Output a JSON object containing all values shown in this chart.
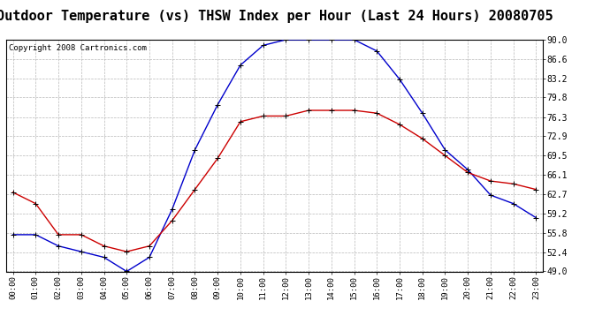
{
  "title": "Outdoor Temperature (vs) THSW Index per Hour (Last 24 Hours) 20080705",
  "copyright": "Copyright 2008 Cartronics.com",
  "hours": [
    "00:00",
    "01:00",
    "02:00",
    "03:00",
    "04:00",
    "05:00",
    "06:00",
    "07:00",
    "08:00",
    "09:00",
    "10:00",
    "11:00",
    "12:00",
    "13:00",
    "14:00",
    "15:00",
    "16:00",
    "17:00",
    "18:00",
    "19:00",
    "20:00",
    "21:00",
    "22:00",
    "23:00"
  ],
  "temp": [
    63.0,
    61.0,
    55.5,
    55.5,
    53.5,
    52.5,
    53.5,
    58.0,
    63.5,
    69.0,
    75.5,
    76.5,
    76.5,
    77.5,
    77.5,
    77.5,
    77.0,
    75.0,
    72.5,
    69.5,
    66.5,
    65.0,
    64.5,
    63.5
  ],
  "thsw": [
    55.5,
    55.5,
    53.5,
    52.5,
    51.5,
    49.0,
    51.5,
    60.0,
    70.5,
    78.5,
    85.5,
    89.0,
    90.0,
    90.0,
    90.0,
    90.0,
    88.0,
    83.0,
    77.0,
    70.5,
    67.0,
    62.5,
    61.0,
    58.5
  ],
  "temp_color": "#cc0000",
  "thsw_color": "#0000cc",
  "ylim_min": 49.0,
  "ylim_max": 90.0,
  "yticks": [
    49.0,
    52.4,
    55.8,
    59.2,
    62.7,
    66.1,
    69.5,
    72.9,
    76.3,
    79.8,
    83.2,
    86.6,
    90.0
  ],
  "background_color": "#ffffff",
  "plot_bg_color": "#ffffff",
  "grid_color": "#b0b0b0",
  "title_fontsize": 11,
  "copyright_fontsize": 6.5
}
